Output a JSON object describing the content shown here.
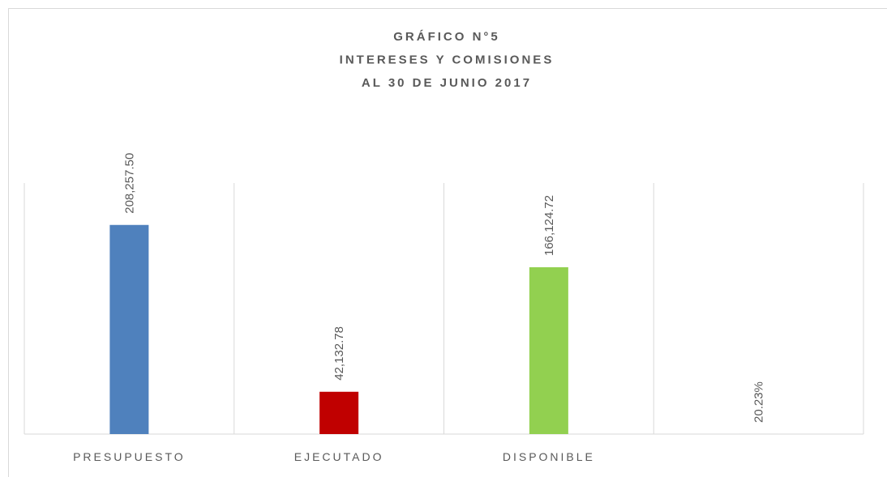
{
  "chart_data": {
    "type": "bar",
    "title": [
      "GRÁFICO N°5",
      "INTERESES Y COMISIONES",
      "AL 30 DE JUNIO 2017"
    ],
    "categories": [
      "PRESUPUESTO",
      "EJECUTADO",
      "DISPONIBLE",
      null
    ],
    "values": [
      208257.5,
      42132.78,
      166124.72,
      20.23
    ],
    "value_labels": [
      "208,257.50",
      "42,132.78",
      "166,124.72",
      "20.23%"
    ],
    "colors": [
      "#4f81bd",
      "#c00000",
      "#92d050",
      "#7f7f7f"
    ],
    "ylim": [
      0,
      250000
    ]
  }
}
